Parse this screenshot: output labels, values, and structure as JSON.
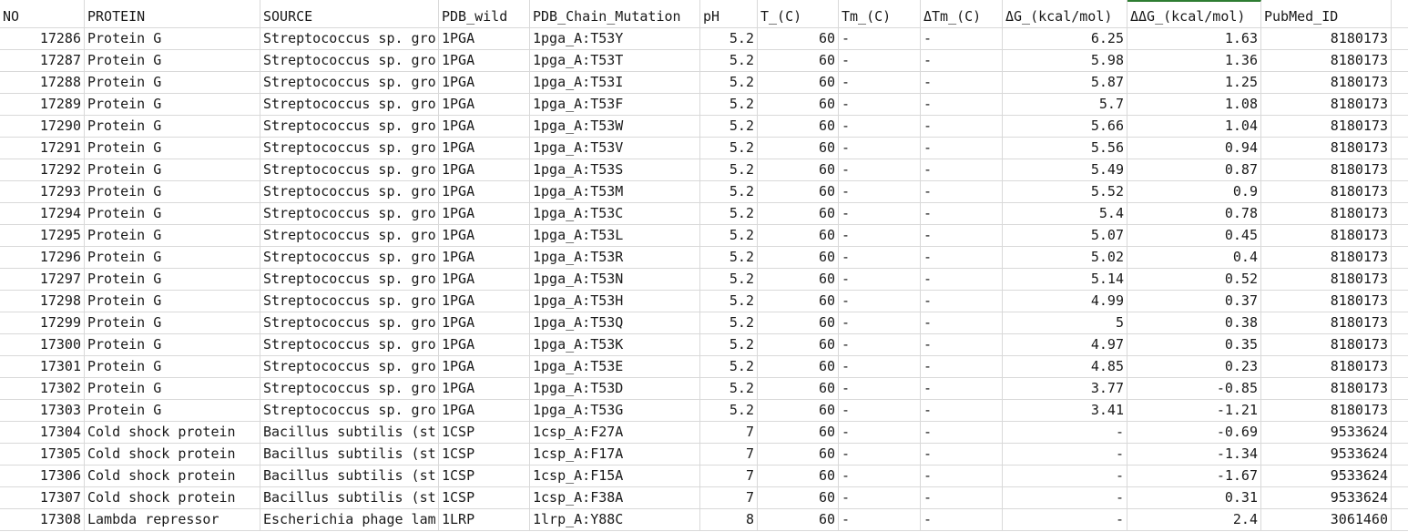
{
  "columns": [
    "NO",
    "PROTEIN",
    "SOURCE",
    "PDB_wild",
    "PDB_Chain_Mutation",
    "pH",
    "T_(C)",
    "Tm_(C)",
    "ΔTm_(C)",
    "ΔG_(kcal/mol)",
    "ΔΔG_(kcal/mol)",
    "PubMed_ID"
  ],
  "rows": [
    [
      "17286",
      "Protein G",
      "Streptococcus sp. gro",
      "1PGA",
      "1pga_A:T53Y",
      "5.2",
      "60",
      "-",
      "-",
      "6.25",
      "1.63",
      "8180173"
    ],
    [
      "17287",
      "Protein G",
      "Streptococcus sp. gro",
      "1PGA",
      "1pga_A:T53T",
      "5.2",
      "60",
      "-",
      "-",
      "5.98",
      "1.36",
      "8180173"
    ],
    [
      "17288",
      "Protein G",
      "Streptococcus sp. gro",
      "1PGA",
      "1pga_A:T53I",
      "5.2",
      "60",
      "-",
      "-",
      "5.87",
      "1.25",
      "8180173"
    ],
    [
      "17289",
      "Protein G",
      "Streptococcus sp. gro",
      "1PGA",
      "1pga_A:T53F",
      "5.2",
      "60",
      "-",
      "-",
      "5.7",
      "1.08",
      "8180173"
    ],
    [
      "17290",
      "Protein G",
      "Streptococcus sp. gro",
      "1PGA",
      "1pga_A:T53W",
      "5.2",
      "60",
      "-",
      "-",
      "5.66",
      "1.04",
      "8180173"
    ],
    [
      "17291",
      "Protein G",
      "Streptococcus sp. gro",
      "1PGA",
      "1pga_A:T53V",
      "5.2",
      "60",
      "-",
      "-",
      "5.56",
      "0.94",
      "8180173"
    ],
    [
      "17292",
      "Protein G",
      "Streptococcus sp. gro",
      "1PGA",
      "1pga_A:T53S",
      "5.2",
      "60",
      "-",
      "-",
      "5.49",
      "0.87",
      "8180173"
    ],
    [
      "17293",
      "Protein G",
      "Streptococcus sp. gro",
      "1PGA",
      "1pga_A:T53M",
      "5.2",
      "60",
      "-",
      "-",
      "5.52",
      "0.9",
      "8180173"
    ],
    [
      "17294",
      "Protein G",
      "Streptococcus sp. gro",
      "1PGA",
      "1pga_A:T53C",
      "5.2",
      "60",
      "-",
      "-",
      "5.4",
      "0.78",
      "8180173"
    ],
    [
      "17295",
      "Protein G",
      "Streptococcus sp. gro",
      "1PGA",
      "1pga_A:T53L",
      "5.2",
      "60",
      "-",
      "-",
      "5.07",
      "0.45",
      "8180173"
    ],
    [
      "17296",
      "Protein G",
      "Streptococcus sp. gro",
      "1PGA",
      "1pga_A:T53R",
      "5.2",
      "60",
      "-",
      "-",
      "5.02",
      "0.4",
      "8180173"
    ],
    [
      "17297",
      "Protein G",
      "Streptococcus sp. gro",
      "1PGA",
      "1pga_A:T53N",
      "5.2",
      "60",
      "-",
      "-",
      "5.14",
      "0.52",
      "8180173"
    ],
    [
      "17298",
      "Protein G",
      "Streptococcus sp. gro",
      "1PGA",
      "1pga_A:T53H",
      "5.2",
      "60",
      "-",
      "-",
      "4.99",
      "0.37",
      "8180173"
    ],
    [
      "17299",
      "Protein G",
      "Streptococcus sp. gro",
      "1PGA",
      "1pga_A:T53Q",
      "5.2",
      "60",
      "-",
      "-",
      "5",
      "0.38",
      "8180173"
    ],
    [
      "17300",
      "Protein G",
      "Streptococcus sp. gro",
      "1PGA",
      "1pga_A:T53K",
      "5.2",
      "60",
      "-",
      "-",
      "4.97",
      "0.35",
      "8180173"
    ],
    [
      "17301",
      "Protein G",
      "Streptococcus sp. gro",
      "1PGA",
      "1pga_A:T53E",
      "5.2",
      "60",
      "-",
      "-",
      "4.85",
      "0.23",
      "8180173"
    ],
    [
      "17302",
      "Protein G",
      "Streptococcus sp. gro",
      "1PGA",
      "1pga_A:T53D",
      "5.2",
      "60",
      "-",
      "-",
      "3.77",
      "-0.85",
      "8180173"
    ],
    [
      "17303",
      "Protein G",
      "Streptococcus sp. gro",
      "1PGA",
      "1pga_A:T53G",
      "5.2",
      "60",
      "-",
      "-",
      "3.41",
      "-1.21",
      "8180173"
    ],
    [
      "17304",
      "Cold shock protein",
      "Bacillus subtilis (st",
      "1CSP",
      "1csp_A:F27A",
      "7",
      "60",
      "-",
      "-",
      "-",
      "-0.69",
      "9533624"
    ],
    [
      "17305",
      "Cold shock protein",
      "Bacillus subtilis (st",
      "1CSP",
      "1csp_A:F17A",
      "7",
      "60",
      "-",
      "-",
      "-",
      "-1.34",
      "9533624"
    ],
    [
      "17306",
      "Cold shock protein",
      "Bacillus subtilis (st",
      "1CSP",
      "1csp_A:F15A",
      "7",
      "60",
      "-",
      "-",
      "-",
      "-1.67",
      "9533624"
    ],
    [
      "17307",
      "Cold shock protein",
      "Bacillus subtilis (st",
      "1CSP",
      "1csp_A:F38A",
      "7",
      "60",
      "-",
      "-",
      "-",
      "0.31",
      "9533624"
    ],
    [
      "17308",
      "Lambda repressor",
      "Escherichia phage lam",
      "1LRP",
      "1lrp_A:Y88C",
      "8",
      "60",
      "-",
      "-",
      "-",
      "2.4",
      "3061460"
    ]
  ],
  "column_align": [
    "num",
    "txt",
    "txt",
    "txt",
    "txt",
    "num",
    "num",
    "txt",
    "txt",
    "num",
    "num",
    "num"
  ],
  "colors": {
    "gridline": "#d9d9d9",
    "selected_column_accent": "#2e7d32"
  },
  "selected_column_index": 10
}
